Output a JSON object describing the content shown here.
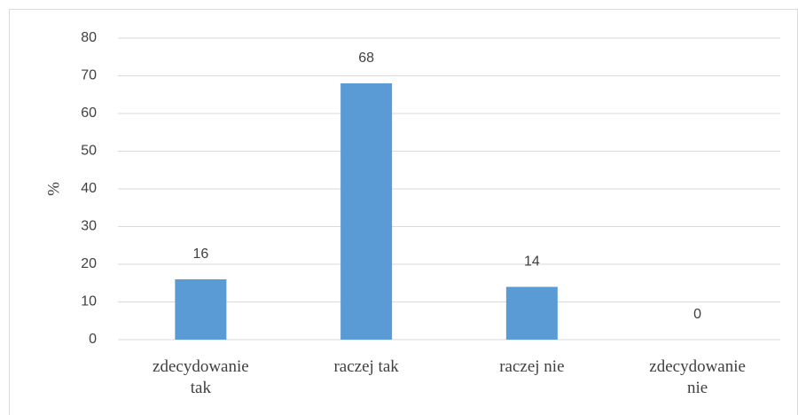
{
  "chart_data": {
    "type": "bar",
    "ylabel": "%",
    "categories": [
      "zdecydowanie tak",
      "raczej tak",
      "raczej nie",
      "zdecydowanie nie"
    ],
    "values": [
      16,
      68,
      14,
      0
    ],
    "color": "#5b9bd5",
    "ylim": [
      0,
      80
    ],
    "yticks": [
      0,
      10,
      20,
      30,
      40,
      50,
      60,
      70,
      80
    ],
    "grid": true
  }
}
